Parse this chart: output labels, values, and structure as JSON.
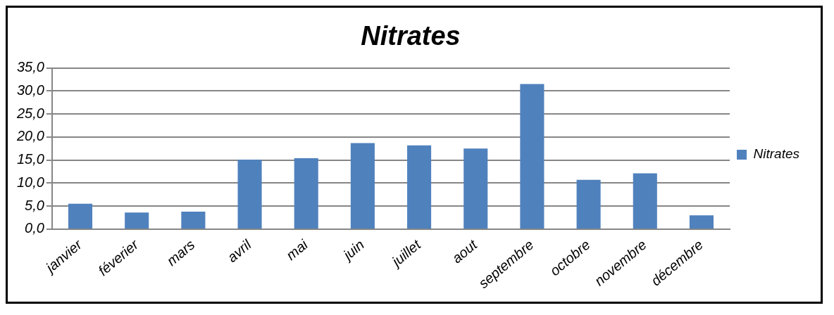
{
  "chart_data": {
    "type": "bar",
    "title": "Nitrates",
    "categories": [
      "janvier",
      "féverier",
      "mars",
      "avril",
      "mai",
      "juin",
      "juillet",
      "aout",
      "septembre",
      "octobre",
      "novembre",
      "décembre"
    ],
    "series": [
      {
        "name": "Nitrates",
        "color": "#4f81bd",
        "values": [
          5.5,
          3.6,
          3.8,
          15.1,
          15.4,
          18.7,
          18.2,
          17.5,
          31.5,
          10.7,
          12.1,
          3.0
        ]
      }
    ],
    "ylim": [
      0,
      35
    ],
    "yticks": [
      {
        "value": 0,
        "label": "0,0"
      },
      {
        "value": 5,
        "label": "5,0"
      },
      {
        "value": 10,
        "label": "10,0"
      },
      {
        "value": 15,
        "label": "15,0"
      },
      {
        "value": 20,
        "label": "20,0"
      },
      {
        "value": 25,
        "label": "25,0"
      },
      {
        "value": 30,
        "label": "30,0"
      },
      {
        "value": 35,
        "label": "35,0"
      }
    ],
    "grid": "y",
    "legend": "right"
  }
}
